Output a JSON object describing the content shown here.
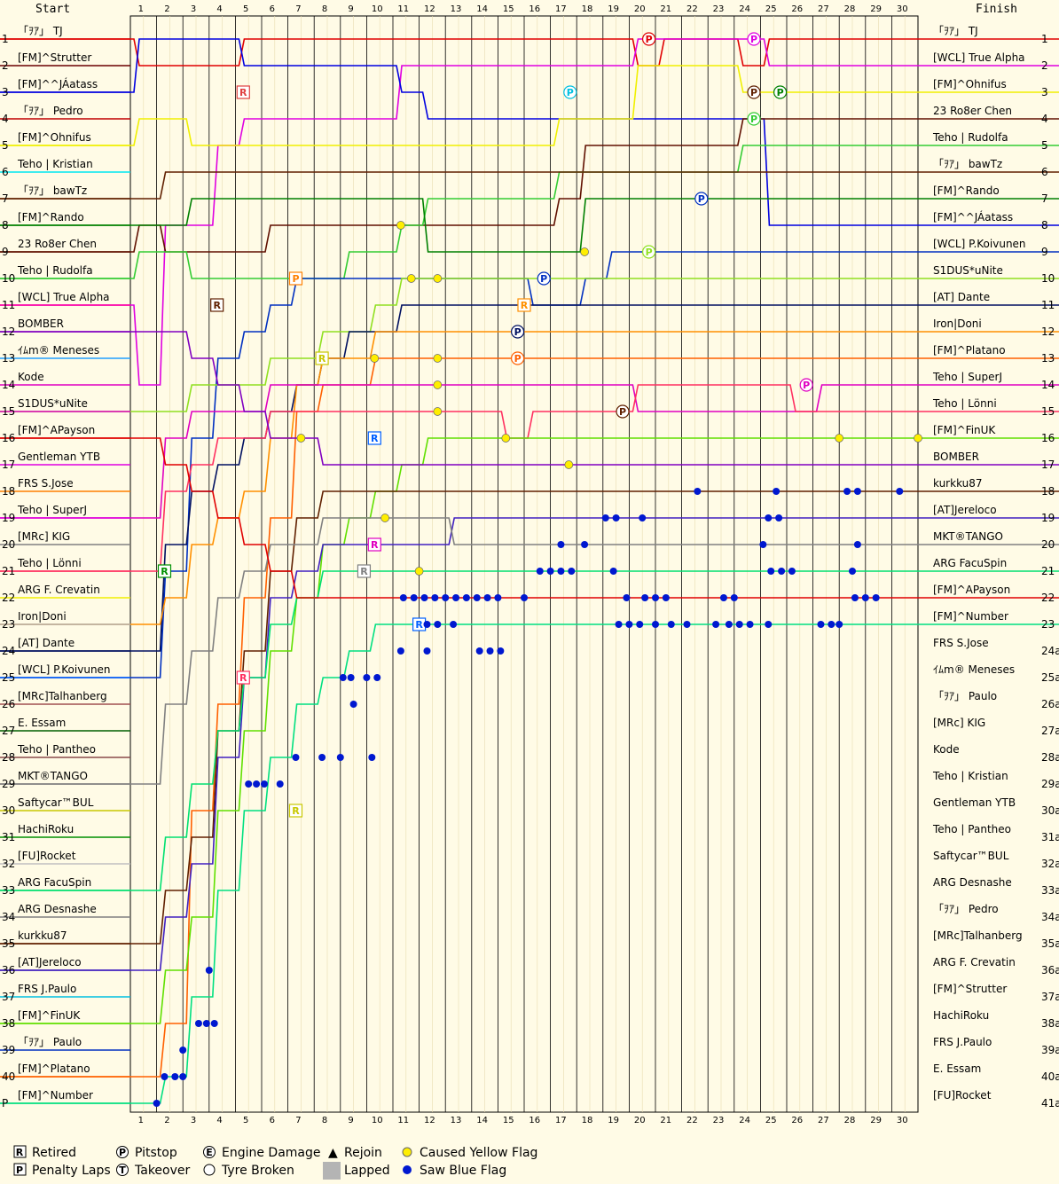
{
  "chart_data": {
    "type": "line",
    "start_label": "Start",
    "finish_label": "Finish",
    "laps": [
      1,
      2,
      3,
      4,
      5,
      6,
      7,
      8,
      9,
      10,
      11,
      12,
      13,
      14,
      15,
      16,
      17,
      18,
      19,
      20,
      21,
      22,
      23,
      24,
      25,
      26,
      27,
      28,
      29,
      30
    ],
    "positions": [
      "1",
      "2",
      "3",
      "4",
      "5",
      "6",
      "7",
      "8",
      "9",
      "10",
      "11",
      "12",
      "13",
      "14",
      "15",
      "16",
      "17",
      "18",
      "19",
      "20",
      "21",
      "22",
      "23",
      "24",
      "25",
      "26",
      "27",
      "28",
      "29",
      "30",
      "31",
      "32",
      "33",
      "34",
      "35",
      "36",
      "37",
      "38",
      "39",
      "40",
      "P"
    ],
    "finish_positions": [
      "1",
      "2",
      "3",
      "4",
      "5",
      "6",
      "7",
      "8",
      "9",
      "10",
      "11",
      "12",
      "13",
      "14",
      "15",
      "16",
      "17",
      "18",
      "19",
      "20",
      "21",
      "22",
      "23",
      "24a",
      "25a",
      "26a",
      "27a",
      "28a",
      "29a",
      "30a",
      "31a",
      "32a",
      "33a",
      "34a",
      "35a",
      "36a",
      "37a",
      "38a",
      "39a",
      "40a",
      "41a"
    ],
    "start_grid": [
      "「ｦｱ」 TJ",
      "[FM]^Strutter",
      "[FM]^^JÁatass",
      "「ｦｱ」 Pedro",
      "[FM]^Ohnifus",
      "Teho | Kristian",
      "「ｦｱ」 bawTz",
      "[FM]^Rando",
      "23 Ro8er Chen",
      "Teho | Rudolfa",
      "[WCL] True Alpha",
      "BOMBER",
      "ｲﾑm® Meneses",
      "Kode",
      "S1DUS*uNite",
      "[FM]^APayson",
      "Gentleman YTB",
      "FRS S.Jose",
      "Teho | SuperJ",
      "[MRc] KIG",
      "Teho | Lönni",
      "ARG F. Crevatin",
      "Iron|Doni",
      "[AT] Dante",
      "[WCL] P.Koivunen",
      "[MRc]Talhanberg",
      "E. Essam",
      "Teho | Pantheo",
      "MKT®TANGO",
      "Saftycar™BUL",
      "HachiRoku",
      "[FU]Rocket",
      "ARG FacuSpin",
      "ARG Desnashe",
      "kurkku87",
      "[AT]Jereloco",
      "FRS J.Paulo",
      "[FM]^FinUK",
      "「ｦｱ」 Paulo",
      "[FM]^Platano",
      "[FM]^Number"
    ],
    "finish_order": [
      "「ｦｱ」 TJ",
      "[WCL] True Alpha",
      "[FM]^Ohnifus",
      "23 Ro8er Chen",
      "Teho | Rudolfa",
      "「ｦｱ」 bawTz",
      "[FM]^Rando",
      "[FM]^^JÁatass",
      "[WCL] P.Koivunen",
      "S1DUS*uNite",
      "[AT] Dante",
      "Iron|Doni",
      "[FM]^Platano",
      "Teho | SuperJ",
      "Teho | Lönni",
      "[FM]^FinUK",
      "BOMBER",
      "kurkku87",
      "[AT]Jereloco",
      "MKT®TANGO",
      "ARG FacuSpin",
      "[FM]^APayson",
      "[FM]^Number",
      "FRS S.Jose",
      "ｲﾑm® Meneses",
      "「ｦｱ」 Paulo",
      "[MRc] KIG",
      "Kode",
      "Teho | Kristian",
      "Gentleman YTB",
      "Teho | Pantheo",
      "Saftycar™BUL",
      "ARG Desnashe",
      "「ｦｱ」 Pedro",
      "[MRc]Talhanberg",
      "ARG F. Crevatin",
      "[FM]^Strutter",
      "HachiRoku",
      "FRS J.Paulo",
      "E. Essam",
      "[FU]Rocket"
    ],
    "colors": [
      "#e00000",
      "#6b0000",
      "#0000e0",
      "#c00000",
      "#f0f000",
      "#00e8f0",
      "#602000",
      "#008000",
      "#601000",
      "#33cc33",
      "#ff00a0",
      "#8000c0",
      "#20a0ff",
      "#e000c0",
      "#e000c0",
      "#e00000",
      "#e000e0",
      "#ff8000",
      "#e000e0",
      "#808080",
      "#ff3060",
      "#f0f000",
      "#b0b0b0",
      "#001060",
      "#0060ff",
      "#a05050",
      "#006000",
      "#8a4a4a",
      "#808080",
      "#c8c800",
      "#009000",
      "#c0c0c0",
      "#00e070",
      "#808080",
      "#602000",
      "#4020c0",
      "#00c0e0",
      "#60e000",
      "#0030c0",
      "#ff6000",
      "#00e080"
    ],
    "lines": [
      {
        "name": "「ｦｱ」 TJ",
        "color": "#e00000",
        "pos": [
          2,
          2,
          2,
          2,
          1,
          1,
          1,
          1,
          1,
          1,
          1,
          1,
          1,
          1,
          1,
          1,
          1,
          1,
          1,
          2,
          1,
          1,
          1,
          2,
          1,
          1,
          1,
          1,
          1,
          1
        ]
      },
      {
        "name": "[WCL] True Alpha",
        "color": "#e000e0",
        "pos": [
          14,
          8,
          8,
          5,
          4,
          4,
          4,
          4,
          4,
          4,
          2,
          2,
          2,
          2,
          2,
          2,
          2,
          2,
          2,
          1,
          1,
          1,
          1,
          1,
          2,
          2,
          2,
          2,
          2,
          2
        ]
      },
      {
        "name": "[FM]^^JÁatass",
        "color": "#0000e0",
        "pos": [
          1,
          1,
          1,
          1,
          2,
          2,
          2,
          2,
          2,
          2,
          3,
          4,
          4,
          4,
          4,
          4,
          4,
          4,
          4,
          4,
          4,
          4,
          4,
          4,
          8,
          8,
          8,
          8,
          8,
          8
        ]
      },
      {
        "name": "[FM]^Ohnifus",
        "color": "#f0f000",
        "pos": [
          4,
          4,
          5,
          5,
          5,
          5,
          5,
          5,
          5,
          5,
          5,
          5,
          5,
          5,
          5,
          5,
          4,
          4,
          4,
          2,
          2,
          2,
          2,
          3,
          3,
          3,
          3,
          3,
          3,
          3
        ]
      },
      {
        "name": "23 Ro8er Chen",
        "color": "#601000",
        "pos": [
          8,
          9,
          9,
          9,
          9,
          8,
          8,
          8,
          8,
          8,
          8,
          8,
          8,
          8,
          8,
          8,
          7,
          5,
          5,
          5,
          5,
          5,
          5,
          4,
          4,
          4,
          4,
          4,
          4,
          4
        ]
      },
      {
        "name": "Teho | Rudolfa",
        "color": "#33cc33",
        "pos": [
          9,
          9,
          10,
          10,
          10,
          10,
          10,
          10,
          9,
          9,
          8,
          7,
          7,
          7,
          7,
          7,
          6,
          6,
          6,
          6,
          6,
          6,
          6,
          5,
          5,
          5,
          5,
          5,
          5,
          5
        ]
      },
      {
        "name": "「ｦｱ」 bawTz",
        "color": "#602000",
        "pos": [
          7,
          6,
          6,
          6,
          6,
          6,
          6,
          6,
          6,
          6,
          6,
          6,
          6,
          6,
          6,
          6,
          6,
          6,
          6,
          6,
          6,
          6,
          6,
          6,
          6,
          6,
          6,
          6,
          6,
          6
        ]
      },
      {
        "name": "[FM]^Rando",
        "color": "#008000",
        "pos": [
          8,
          8,
          7,
          7,
          7,
          7,
          7,
          7,
          7,
          7,
          7,
          9,
          9,
          9,
          9,
          9,
          9,
          7,
          7,
          7,
          7,
          7,
          7,
          7,
          7,
          7,
          7,
          7,
          7,
          7
        ]
      },
      {
        "name": "[WCL] P.Koivunen",
        "color": "#0030c0",
        "pos": [
          25,
          21,
          16,
          13,
          12,
          11,
          10,
          10,
          10,
          10,
          10,
          10,
          10,
          10,
          10,
          11,
          11,
          10,
          9,
          9,
          9,
          9,
          9,
          9,
          9,
          9,
          9,
          9,
          9,
          9
        ]
      },
      {
        "name": "S1DUS*uNite",
        "color": "#90e020",
        "pos": [
          15,
          15,
          14,
          14,
          14,
          13,
          13,
          12,
          12,
          11,
          10,
          10,
          10,
          10,
          10,
          10,
          10,
          10,
          10,
          10,
          10,
          10,
          10,
          10,
          10,
          10,
          10,
          10,
          10,
          10
        ]
      },
      {
        "name": "[AT] Dante",
        "color": "#001060",
        "pos": [
          24,
          20,
          18,
          17,
          16,
          15,
          14,
          13,
          12,
          12,
          11,
          11,
          11,
          11,
          11,
          11,
          11,
          11,
          11,
          11,
          11,
          11,
          11,
          11,
          11,
          11,
          11,
          11,
          11,
          11
        ]
      },
      {
        "name": "Iron|Doni",
        "color": "#ff9000",
        "pos": [
          23,
          22,
          20,
          19,
          18,
          16,
          14,
          13,
          13,
          12,
          12,
          12,
          12,
          12,
          12,
          12,
          12,
          12,
          12,
          12,
          12,
          12,
          12,
          12,
          12,
          12,
          12,
          12,
          12,
          12
        ]
      },
      {
        "name": "[FM]^Platano",
        "color": "#ff6000",
        "pos": [
          40,
          38,
          30,
          26,
          22,
          19,
          15,
          14,
          14,
          13,
          13,
          13,
          13,
          13,
          13,
          13,
          13,
          13,
          13,
          13,
          13,
          13,
          13,
          13,
          13,
          13,
          13,
          13,
          13,
          13
        ]
      },
      {
        "name": "Teho | SuperJ",
        "color": "#e000c0",
        "pos": [
          19,
          16,
          15,
          15,
          15,
          14,
          14,
          14,
          14,
          14,
          14,
          14,
          14,
          14,
          14,
          14,
          14,
          14,
          14,
          15,
          15,
          15,
          15,
          15,
          15,
          15,
          14,
          14,
          14,
          14
        ]
      },
      {
        "name": "Teho | Lönni",
        "color": "#ff3060",
        "pos": [
          21,
          18,
          17,
          16,
          16,
          15,
          15,
          15,
          15,
          15,
          15,
          15,
          15,
          15,
          16,
          15,
          15,
          15,
          15,
          14,
          14,
          14,
          14,
          14,
          14,
          15,
          15,
          15,
          15,
          15
        ]
      },
      {
        "name": "[FM]^FinUK",
        "color": "#60e000",
        "pos": [
          38,
          36,
          34,
          30,
          27,
          24,
          22,
          20,
          19,
          18,
          17,
          16,
          16,
          16,
          16,
          16,
          16,
          16,
          16,
          16,
          16,
          16,
          16,
          16,
          16,
          16,
          16,
          16,
          16,
          16
        ]
      },
      {
        "name": "BOMBER",
        "color": "#8000c0",
        "pos": [
          12,
          12,
          13,
          14,
          15,
          16,
          16,
          17,
          17,
          17,
          17,
          17,
          17,
          17,
          17,
          17,
          17,
          17,
          17,
          17,
          17,
          17,
          17,
          17,
          17,
          17,
          17,
          17,
          17,
          17
        ]
      },
      {
        "name": "kurkku87",
        "color": "#602000",
        "pos": [
          35,
          33,
          31,
          27,
          24,
          21,
          19,
          18,
          18,
          18,
          18,
          18,
          18,
          18,
          18,
          18,
          18,
          18,
          18,
          18,
          18,
          18,
          18,
          18,
          18,
          18,
          18,
          18,
          18,
          18
        ]
      },
      {
        "name": "[AT]Jereloco",
        "color": "#4020c0",
        "pos": [
          36,
          34,
          32,
          28,
          25,
          22,
          21,
          20,
          20,
          20,
          20,
          20,
          19,
          19,
          19,
          19,
          19,
          19,
          19,
          19,
          19,
          19,
          19,
          19,
          19,
          19,
          19,
          19,
          19,
          19
        ]
      },
      {
        "name": "MKT®TANGO",
        "color": "#808080",
        "pos": [
          29,
          26,
          24,
          22,
          21,
          20,
          20,
          19,
          19,
          19,
          19,
          19,
          20,
          20,
          20,
          20,
          20,
          20,
          20,
          20,
          20,
          20,
          20,
          20,
          20,
          20,
          20,
          20,
          20,
          20
        ]
      },
      {
        "name": "ARG FacuSpin",
        "color": "#00e070",
        "pos": [
          33,
          31,
          29,
          27,
          25,
          23,
          22,
          21,
          21,
          21,
          21,
          21,
          21,
          21,
          21,
          21,
          21,
          21,
          21,
          21,
          21,
          21,
          21,
          21,
          21,
          21,
          21,
          21,
          21,
          21
        ]
      },
      {
        "name": "[FM]^APayson",
        "color": "#e00000",
        "pos": [
          16,
          17,
          18,
          19,
          20,
          21,
          22,
          22,
          22,
          22,
          22,
          22,
          22,
          22,
          22,
          22,
          22,
          22,
          22,
          22,
          22,
          22,
          22,
          22,
          22,
          22,
          22,
          22,
          22,
          22
        ]
      },
      {
        "name": "[FM]^Number",
        "color": "#00e080",
        "pos": [
          41,
          40,
          37,
          33,
          30,
          28,
          26,
          25,
          24,
          23,
          23,
          23,
          23,
          23,
          23,
          23,
          23,
          23,
          23,
          23,
          23,
          23,
          23,
          23,
          23,
          23,
          23,
          23,
          23,
          23
        ]
      }
    ],
    "legend": [
      {
        "symbol": "R",
        "label": "Retired"
      },
      {
        "symbol": "P",
        "label": "Pitstop"
      },
      {
        "symbol": "E",
        "label": "Engine Damage"
      },
      {
        "symbol": "▲",
        "label": "Rejoin"
      },
      {
        "symbol": "yellow-dot",
        "label": "Caused Yellow Flag"
      },
      {
        "symbol": "P",
        "label": "Penalty Laps"
      },
      {
        "symbol": "T",
        "label": "Takeover"
      },
      {
        "symbol": "tyre",
        "label": "Tyre Broken"
      },
      {
        "symbol": "grey-box",
        "label": "Lapped"
      },
      {
        "symbol": "blue-dot",
        "label": "Saw Blue Flag"
      }
    ],
    "ylim": [
      1,
      41
    ],
    "xlim": [
      0,
      30
    ],
    "grid": true,
    "legend_placement": "bottom"
  }
}
